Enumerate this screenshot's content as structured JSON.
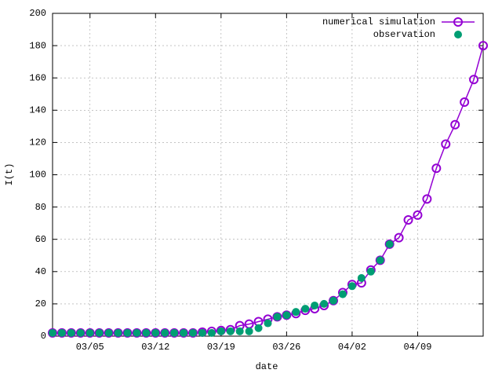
{
  "chart_data": {
    "type": "line",
    "x_label": "date",
    "y_label": "I(t)",
    "x": [
      "03/01",
      "03/02",
      "03/03",
      "03/04",
      "03/05",
      "03/06",
      "03/07",
      "03/08",
      "03/09",
      "03/10",
      "03/11",
      "03/12",
      "03/13",
      "03/14",
      "03/15",
      "03/16",
      "03/17",
      "03/18",
      "03/19",
      "03/20",
      "03/21",
      "03/22",
      "03/23",
      "03/24",
      "03/25",
      "03/26",
      "03/27",
      "03/28",
      "03/29",
      "03/30",
      "03/31",
      "04/01",
      "04/02",
      "04/03",
      "04/04",
      "04/05",
      "04/06",
      "04/07",
      "04/08",
      "04/09",
      "04/10",
      "04/11",
      "04/12",
      "04/13",
      "04/14",
      "04/15",
      "04/16"
    ],
    "series": [
      {
        "name": "numerical simulation",
        "color": "#9400d3",
        "marker": "open-circle",
        "values": [
          2,
          2,
          2,
          2,
          2,
          2,
          2,
          2,
          2,
          2,
          2,
          2,
          2,
          2,
          2,
          2,
          2.5,
          3,
          3.5,
          4,
          6.5,
          7.5,
          9,
          10.5,
          12,
          13,
          14,
          16,
          17,
          19,
          22,
          27,
          32,
          33,
          41,
          47,
          57,
          61,
          72,
          75,
          85,
          104,
          119,
          131,
          145,
          159,
          180
        ]
      },
      {
        "name": "observation",
        "color": "#009e73",
        "marker": "filled-circle",
        "values": [
          2,
          2,
          2,
          2,
          2,
          2,
          2,
          2,
          2,
          2,
          2,
          2,
          2,
          2,
          2,
          2,
          2,
          2,
          3,
          3,
          3,
          3,
          5,
          8,
          12,
          13,
          15,
          17,
          19,
          20,
          22,
          26,
          31,
          36,
          40,
          47,
          57,
          null,
          null,
          null,
          null,
          null,
          null,
          null,
          null,
          null,
          null
        ]
      }
    ],
    "xlim": [
      "03/01",
      "04/16"
    ],
    "xticks": [
      "03/05",
      "03/12",
      "03/19",
      "03/26",
      "04/02",
      "04/09"
    ],
    "ylim": [
      0,
      200
    ],
    "yticks": [
      0,
      20,
      40,
      60,
      80,
      100,
      120,
      140,
      160,
      180,
      200
    ],
    "grid": true,
    "legend": "top-right"
  }
}
